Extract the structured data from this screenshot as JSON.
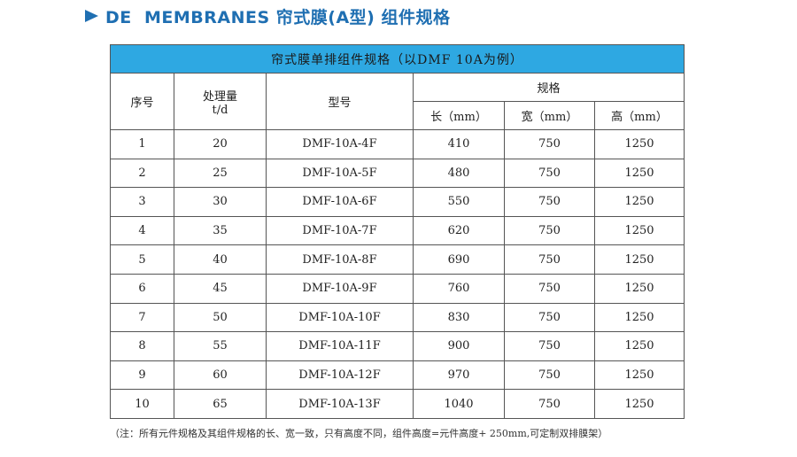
{
  "heading": "DE  MEMBRANES 帘式膜(A型) 组件规格",
  "table": {
    "caption": "帘式膜单排组件规格（以DMF 10A为例）",
    "headers": {
      "index": "序号",
      "capacity_line1": "处理量",
      "capacity_line2": "t/d",
      "model": "型号",
      "spec": "规格",
      "length": "长（mm）",
      "width": "宽（mm）",
      "height": "高（mm）"
    },
    "rows": [
      {
        "index": "1",
        "capacity": "20",
        "model": "DMF-10A-4F",
        "length": "410",
        "width": "750",
        "height": "1250"
      },
      {
        "index": "2",
        "capacity": "25",
        "model": "DMF-10A-5F",
        "length": "480",
        "width": "750",
        "height": "1250"
      },
      {
        "index": "3",
        "capacity": "30",
        "model": "DMF-10A-6F",
        "length": "550",
        "width": "750",
        "height": "1250"
      },
      {
        "index": "4",
        "capacity": "35",
        "model": "DMF-10A-7F",
        "length": "620",
        "width": "750",
        "height": "1250"
      },
      {
        "index": "5",
        "capacity": "40",
        "model": "DMF-10A-8F",
        "length": "690",
        "width": "750",
        "height": "1250"
      },
      {
        "index": "6",
        "capacity": "45",
        "model": "DMF-10A-9F",
        "length": "760",
        "width": "750",
        "height": "1250"
      },
      {
        "index": "7",
        "capacity": "50",
        "model": "DMF-10A-10F",
        "length": "830",
        "width": "750",
        "height": "1250"
      },
      {
        "index": "8",
        "capacity": "55",
        "model": "DMF-10A-11F",
        "length": "900",
        "width": "750",
        "height": "1250"
      },
      {
        "index": "9",
        "capacity": "60",
        "model": "DMF-10A-12F",
        "length": "970",
        "width": "750",
        "height": "1250"
      },
      {
        "index": "10",
        "capacity": "65",
        "model": "DMF-10A-13F",
        "length": "1040",
        "width": "750",
        "height": "1250"
      }
    ]
  },
  "note": "（注：所有元件规格及其组件规格的长、宽一致，只有高度不同，组件高度=元件高度+ 250mm,可定制双排膜架）",
  "colors": {
    "accent": "#1f6fb2",
    "caption_bg": "#2ea8e2"
  },
  "icons": {
    "heading_marker": "arrow-right-icon"
  }
}
